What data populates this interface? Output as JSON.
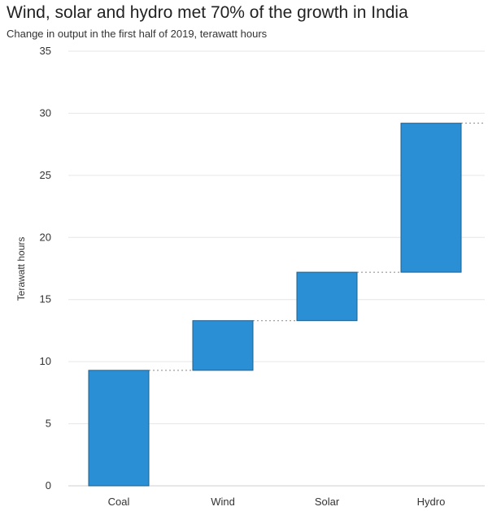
{
  "title": "Wind, solar and hydro met 70% of the growth in India",
  "subtitle": "Change in output in the first half of 2019, terawatt hours",
  "chart_data": {
    "type": "bar",
    "subtype": "waterfall",
    "title": "Wind, solar and hydro met 70% of the growth in India",
    "subtitle": "Change in output in the first half of 2019, terawatt hours",
    "xlabel": "",
    "ylabel": "Terawatt hours",
    "categories": [
      "Coal",
      "Wind",
      "Solar",
      "Hydro"
    ],
    "values": [
      9.3,
      4.0,
      3.9,
      12.0
    ],
    "cumulative_end": [
      9.3,
      13.3,
      17.2,
      29.2
    ],
    "ylim": [
      0,
      35
    ],
    "yticks": [
      "0",
      "5",
      "10",
      "15",
      "20",
      "25",
      "30",
      "35"
    ],
    "grid": true,
    "legend": "none",
    "bar_color": "#2b8fd6",
    "bar_edge_color": "#1f5f8b",
    "connector_color": "#888888",
    "grid_color": "#e6e6e6"
  }
}
